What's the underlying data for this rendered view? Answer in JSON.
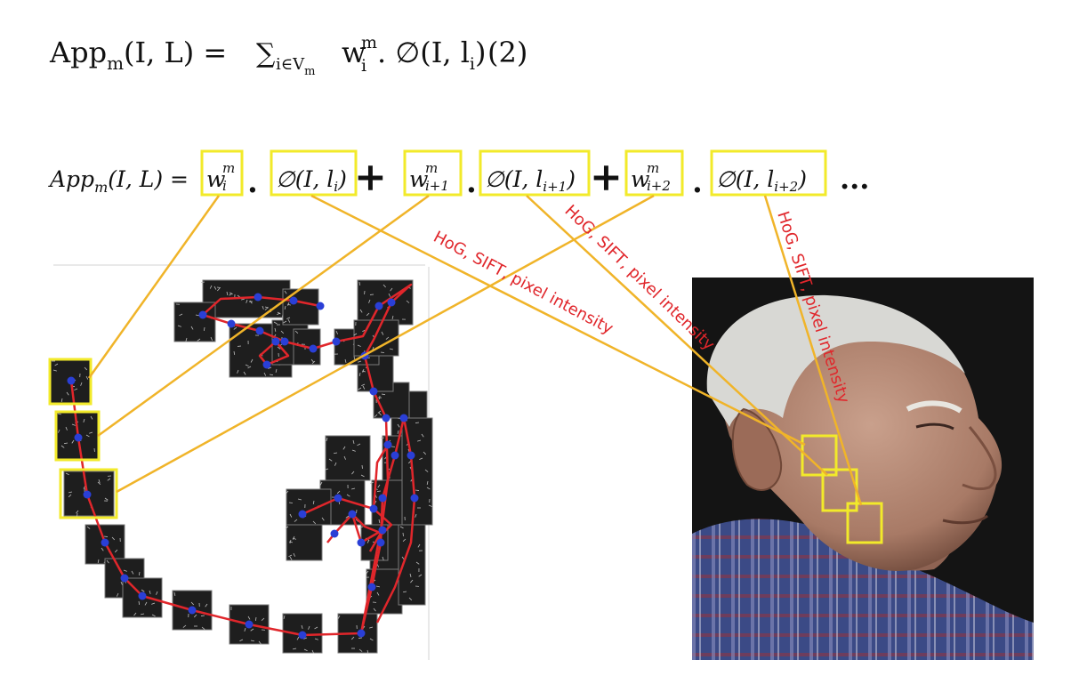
{
  "formula_top": {
    "app": "App",
    "app_sub": "m",
    "args": "(I, L) =",
    "sum": "∑",
    "sum_sub": "i∈V",
    "sum_sub2": "m",
    "w": "w",
    "w_sup": "m",
    "w_sub": "i",
    "tail": ". ∅(I, l",
    "l_sub": "i",
    "close": ")",
    "eq_num": "(2)"
  },
  "formula_expanded": {
    "lhs_app": "App",
    "lhs_sub": "m",
    "lhs_args": "(I, L) =",
    "terms": [
      {
        "w": "w",
        "sup": "m",
        "sub": "i",
        "phi": "∅(I, l",
        "phi_sub": "i",
        "phi_close": ")"
      },
      {
        "w": "w",
        "sup": "m",
        "sub": "i+1",
        "phi": "∅(I, l",
        "phi_sub": "i+1",
        "phi_close": ")"
      },
      {
        "w": "w",
        "sup": "m",
        "sub": "i+2",
        "phi": "∅(I, l",
        "phi_sub": "i+2",
        "phi_close": ")"
      }
    ],
    "dot": ".",
    "plus": "+",
    "ellipsis": "..."
  },
  "annotations": [
    "HoG, SIFT, pixel intensity",
    "HoG, SIFT, pixel intensity",
    "HoG, SIFT, pixel intensity"
  ],
  "colors": {
    "highlight_box": "#f2ea2a",
    "connector": "#f0b429",
    "annotation": "#e0262b",
    "model_edge": "#e0262b",
    "model_node": "#2a3fd6"
  }
}
